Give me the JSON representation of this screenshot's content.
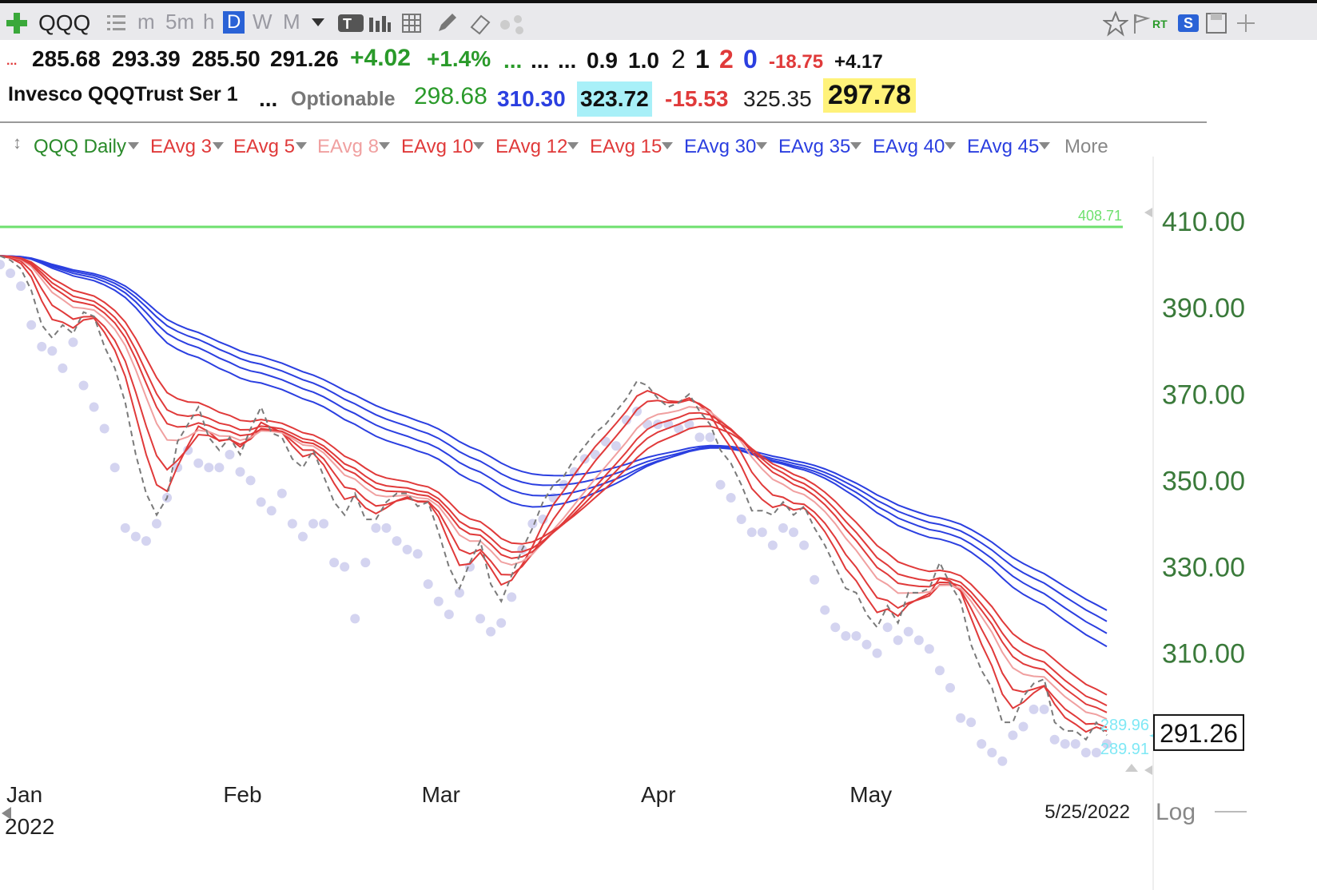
{
  "toolbar": {
    "symbol": "QQQ",
    "timeframes": [
      "m",
      "5m",
      "h",
      "D",
      "W",
      "M"
    ],
    "active_timeframe": "D",
    "rt_label": "RT",
    "s_label": "S"
  },
  "quote": {
    "open": "285.68",
    "high": "293.39",
    "low": "285.50",
    "close": "291.26",
    "change": "+4.02",
    "change_pct": "+1.4%",
    "dots1": "...",
    "dots2": "...",
    "dots3": "...",
    "v1": "0.9",
    "v2": "1.0",
    "n1": "2",
    "n2": "1",
    "n3": "2",
    "n4": "0",
    "neg1": "-18.75",
    "pos1": "+4.17",
    "name": "Invesco QQQTrust Ser 1",
    "dots4": "...",
    "optionable": "Optionable",
    "p1": "298.68",
    "p2": "310.30",
    "p3": "323.72",
    "p4": "-15.53",
    "p5": "325.35",
    "p6": "297.78"
  },
  "legend": {
    "main": "QQQ Daily",
    "more": "More",
    "items": [
      {
        "label": "EAvg 3",
        "color": "#e03a3a"
      },
      {
        "label": "EAvg 5",
        "color": "#e03a3a"
      },
      {
        "label": "EAvg 8",
        "color": "#f0a0a0"
      },
      {
        "label": "EAvg 10",
        "color": "#e03a3a"
      },
      {
        "label": "EAvg 12",
        "color": "#e03a3a"
      },
      {
        "label": "EAvg 15",
        "color": "#e03a3a"
      },
      {
        "label": "EAvg 30",
        "color": "#2b3fe0"
      },
      {
        "label": "EAvg 35",
        "color": "#2b3fe0"
      },
      {
        "label": "EAvg 40",
        "color": "#2b3fe0"
      },
      {
        "label": "EAvg 45",
        "color": "#2b3fe0"
      }
    ]
  },
  "chart_data": {
    "type": "line",
    "x_labels": [
      "Jan",
      "Feb",
      "Mar",
      "Apr",
      "May"
    ],
    "year_label": "2022",
    "y_ticks": [
      "410.00",
      "390.00",
      "370.00",
      "350.00",
      "330.00",
      "310.00"
    ],
    "y_tick_values": [
      410,
      390,
      370,
      350,
      330,
      310
    ],
    "ylim": [
      277,
      425
    ],
    "green_line": {
      "value": 408.71,
      "label": "408.71"
    },
    "last_price": "291.26",
    "label_upper": "289.96",
    "label_lower": "289.91",
    "date_label": "5/25/2022",
    "log_label": "Log",
    "colors": {
      "short": "#e03a3a",
      "short_light": "#f0a0a0",
      "long": "#2b3fe0",
      "price": "#7a7a7a",
      "dots": "#d4d4f0",
      "green": "#6ee06e",
      "axis_text": "#3a7a3a",
      "cyan": "#7fe8f5"
    },
    "close": [
      402,
      401,
      399,
      394,
      386,
      383,
      386,
      384,
      389,
      388,
      381,
      376,
      368,
      356,
      347,
      342,
      346,
      359,
      363,
      367,
      360,
      357,
      360,
      356,
      362,
      367,
      361,
      360,
      355,
      353,
      357,
      351,
      345,
      342,
      347,
      341,
      341,
      345,
      347,
      347,
      344,
      345,
      338,
      330,
      325,
      331,
      336,
      326,
      322,
      328,
      334,
      339,
      345,
      349,
      351,
      355,
      358,
      361,
      363,
      366,
      369,
      373,
      372,
      369,
      367,
      368,
      370,
      366,
      363,
      357,
      354,
      349,
      343,
      343,
      342,
      345,
      342,
      344,
      339,
      335,
      330,
      325,
      324,
      319,
      316,
      321,
      317,
      324,
      324,
      325,
      331,
      326,
      322,
      312,
      306,
      302,
      294,
      294,
      300,
      303,
      304,
      294,
      292,
      292,
      290,
      294,
      291
    ],
    "dots": [
      400,
      398,
      395,
      386,
      381,
      380,
      376,
      382,
      372,
      367,
      362,
      353,
      339,
      337,
      336,
      340,
      346,
      353,
      357,
      354,
      353,
      353,
      356,
      352,
      350,
      345,
      343,
      347,
      340,
      337,
      340,
      340,
      331,
      330,
      318,
      331,
      339,
      339,
      336,
      334,
      333,
      326,
      322,
      319,
      324,
      330,
      318,
      315,
      317,
      323,
      334,
      340,
      341,
      346,
      349,
      352,
      355,
      356,
      359,
      358,
      364,
      366,
      363,
      363,
      363,
      362,
      363,
      360,
      360,
      349,
      346,
      341,
      338,
      338,
      335,
      339,
      338,
      335,
      327,
      320,
      316,
      314,
      314,
      312,
      310,
      316,
      313,
      315,
      313,
      311,
      306,
      302,
      295,
      294,
      289,
      287,
      285,
      291,
      293,
      297,
      297,
      290,
      289,
      289,
      287,
      287,
      289
    ]
  }
}
